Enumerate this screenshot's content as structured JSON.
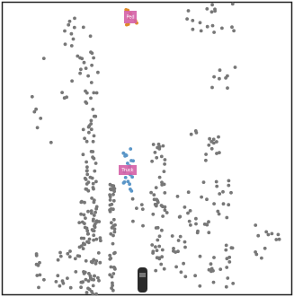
{
  "objects": [
    {
      "label": "Ped"
    },
    {
      "label": "Truck"
    }
  ]
}
